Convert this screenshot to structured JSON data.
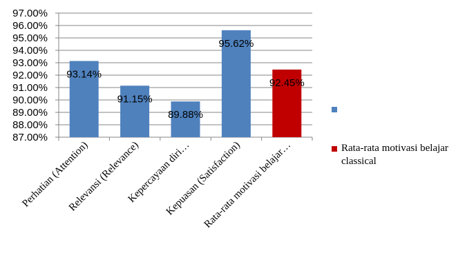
{
  "chart_data": {
    "type": "bar",
    "categories": [
      "Perhatian (Attention)",
      "Relevansi (Relevance)",
      "Kepercayaan diri…",
      "Kepuasan (Satisfaction)",
      "Rata-rata motivasi belajar…"
    ],
    "values": [
      93.14,
      91.15,
      89.88,
      95.62,
      92.45
    ],
    "data_labels": [
      "93.14%",
      "91.15%",
      "89.88%",
      "95.62%",
      "92.45%"
    ],
    "ylim": [
      87.0,
      97.0
    ],
    "yticks": [
      87.0,
      88.0,
      89.0,
      90.0,
      91.0,
      92.0,
      93.0,
      94.0,
      95.0,
      96.0,
      97.0
    ],
    "ytick_labels": [
      "87.00%",
      "88.00%",
      "89.00%",
      "90.00%",
      "91.00%",
      "92.00%",
      "93.00%",
      "94.00%",
      "95.00%",
      "96.00%",
      "97.00%"
    ],
    "grid": true,
    "legend_position": "right",
    "series": [
      {
        "name": "",
        "color": "#4F81BD",
        "indices": [
          0,
          1,
          2,
          3
        ]
      },
      {
        "name": "Rata-rata motivasi belajar classical",
        "color": "#C00000",
        "indices": [
          4
        ]
      }
    ],
    "bar_colors": [
      "#4F81BD",
      "#4F81BD",
      "#4F81BD",
      "#4F81BD",
      "#C00000"
    ]
  },
  "legend": {
    "items": [
      {
        "label": "",
        "color": "#4F81BD"
      },
      {
        "label": "Rata-rata motivasi belajar classical",
        "color": "#C00000"
      }
    ]
  }
}
